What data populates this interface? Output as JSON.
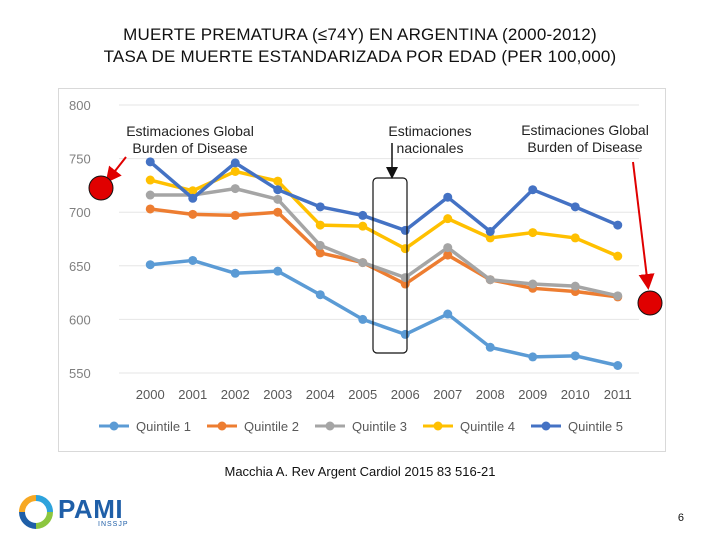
{
  "title_line1": "MUERTE PREMATURA (≤74Y) EN ARGENTINA (2000-2012)",
  "title_line2": "TASA DE MUERTE ESTANDARIZADA POR EDAD (PER 100,000)",
  "annotations": {
    "left_line1": "Estimaciones Global",
    "left_line2": "Burden of Disease",
    "middle_line1": "Estimaciones",
    "middle_line2": "nacionales",
    "right_line1": "Estimaciones Global",
    "right_line2": "Burden of Disease"
  },
  "citation": "Macchia A. Rev Argent Cardiol 2015 83 516-21",
  "logo": {
    "name": "PAMI",
    "sub": "INSSJP"
  },
  "page_number": "6",
  "colors": {
    "q1": "#5b9bd5",
    "q2": "#ed7d31",
    "q3": "#a5a5a5",
    "q4": "#ffc000",
    "q5": "#4472c4",
    "marker_red": "#e00000"
  },
  "chart_data": {
    "type": "line",
    "title": "",
    "xlabel": "",
    "ylabel": "",
    "ylim": [
      550,
      800
    ],
    "yticks": [
      "550",
      "600",
      "650",
      "700",
      "750",
      "800"
    ],
    "categories": [
      "2000",
      "2001",
      "2002",
      "2003",
      "2004",
      "2005",
      "2006",
      "2007",
      "2008",
      "2009",
      "2010",
      "2011"
    ],
    "series": [
      {
        "name": "Quintile 1",
        "color": "#5b9bd5",
        "values": [
          651,
          655,
          643,
          645,
          623,
          600,
          586,
          605,
          574,
          565,
          566,
          557
        ]
      },
      {
        "name": "Quintile 2",
        "color": "#ed7d31",
        "values": [
          703,
          698,
          697,
          700,
          662,
          653,
          633,
          660,
          637,
          629,
          626,
          621
        ]
      },
      {
        "name": "Quintile 3",
        "color": "#a5a5a5",
        "values": [
          716,
          716,
          722,
          712,
          669,
          653,
          639,
          667,
          637,
          633,
          631,
          622
        ]
      },
      {
        "name": "Quintile 4",
        "color": "#ffc000",
        "values": [
          730,
          720,
          738,
          729,
          688,
          687,
          666,
          694,
          676,
          681,
          676,
          659
        ]
      },
      {
        "name": "Quintile 5",
        "color": "#4472c4",
        "values": [
          747,
          713,
          746,
          721,
          705,
          697,
          683,
          714,
          682,
          721,
          705,
          688
        ]
      }
    ],
    "legend_position": "bottom"
  }
}
